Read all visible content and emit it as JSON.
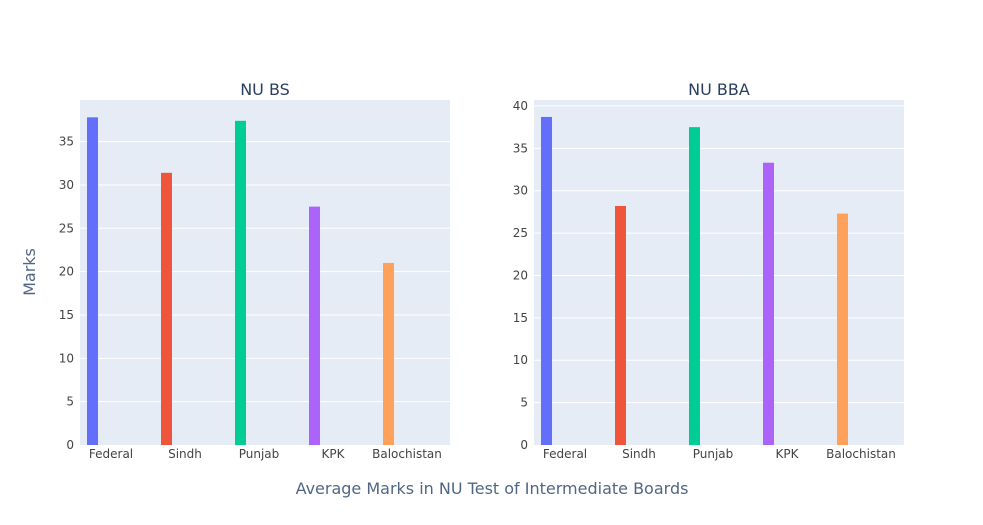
{
  "chart_data": {
    "type": "bar",
    "xlabel": "Average Marks in NU Test of Intermediate Boards",
    "ylabel": "Marks",
    "categories": [
      "Federal",
      "Sindh",
      "Punjab",
      "KPK",
      "Balochistan"
    ],
    "colors": [
      "#636efa",
      "#ef553b",
      "#00cc96",
      "#ab63fa",
      "#ffa15a"
    ],
    "subplots": [
      {
        "title": "NU BS",
        "values": [
          37.8,
          31.4,
          37.4,
          27.5,
          21.0
        ],
        "ylim": [
          0,
          39.8
        ],
        "yticks": [
          0,
          5,
          10,
          15,
          20,
          25,
          30,
          35
        ]
      },
      {
        "title": "NU BBA",
        "values": [
          38.7,
          28.2,
          37.5,
          33.3,
          27.3
        ],
        "ylim": [
          0,
          40.7
        ],
        "yticks": [
          0,
          5,
          10,
          15,
          20,
          25,
          30,
          35,
          40
        ]
      }
    ]
  }
}
